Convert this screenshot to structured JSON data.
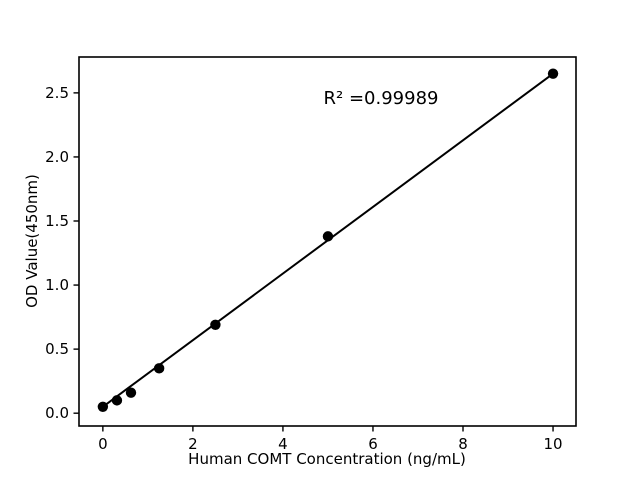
{
  "figure": {
    "background": "#ffffff"
  },
  "chart_data": {
    "type": "scatter",
    "title": "",
    "xlabel": "Human COMT Concentration (ng/mL)",
    "ylabel": "OD Value(450nm)",
    "annotation": "R² =0.99989",
    "r_squared": 0.99989,
    "x": [
      0,
      0.313,
      0.625,
      1.25,
      2.5,
      5,
      10
    ],
    "y": [
      0.05,
      0.1,
      0.16,
      0.35,
      0.69,
      1.38,
      2.65
    ],
    "trendline": {
      "x1": 0,
      "y1": 0.05,
      "x2": 10,
      "y2": 2.65
    },
    "xticks": [
      0,
      2,
      4,
      6,
      8,
      10
    ],
    "xtick_labels": [
      "0",
      "2",
      "4",
      "6",
      "8",
      "10"
    ],
    "yticks": [
      0,
      0.5,
      1,
      1.5,
      2,
      2.5
    ],
    "ytick_labels": [
      "0.0",
      "0.5",
      "1.0",
      "1.5",
      "2.0",
      "2.5"
    ],
    "xlim": [
      -0.53,
      10.51
    ],
    "ylim": [
      -0.1,
      2.78
    ],
    "grid": false,
    "legend": false,
    "colors": {
      "marker": "#000000",
      "line": "#000000",
      "axis": "#000000",
      "background": "#ffffff"
    }
  }
}
